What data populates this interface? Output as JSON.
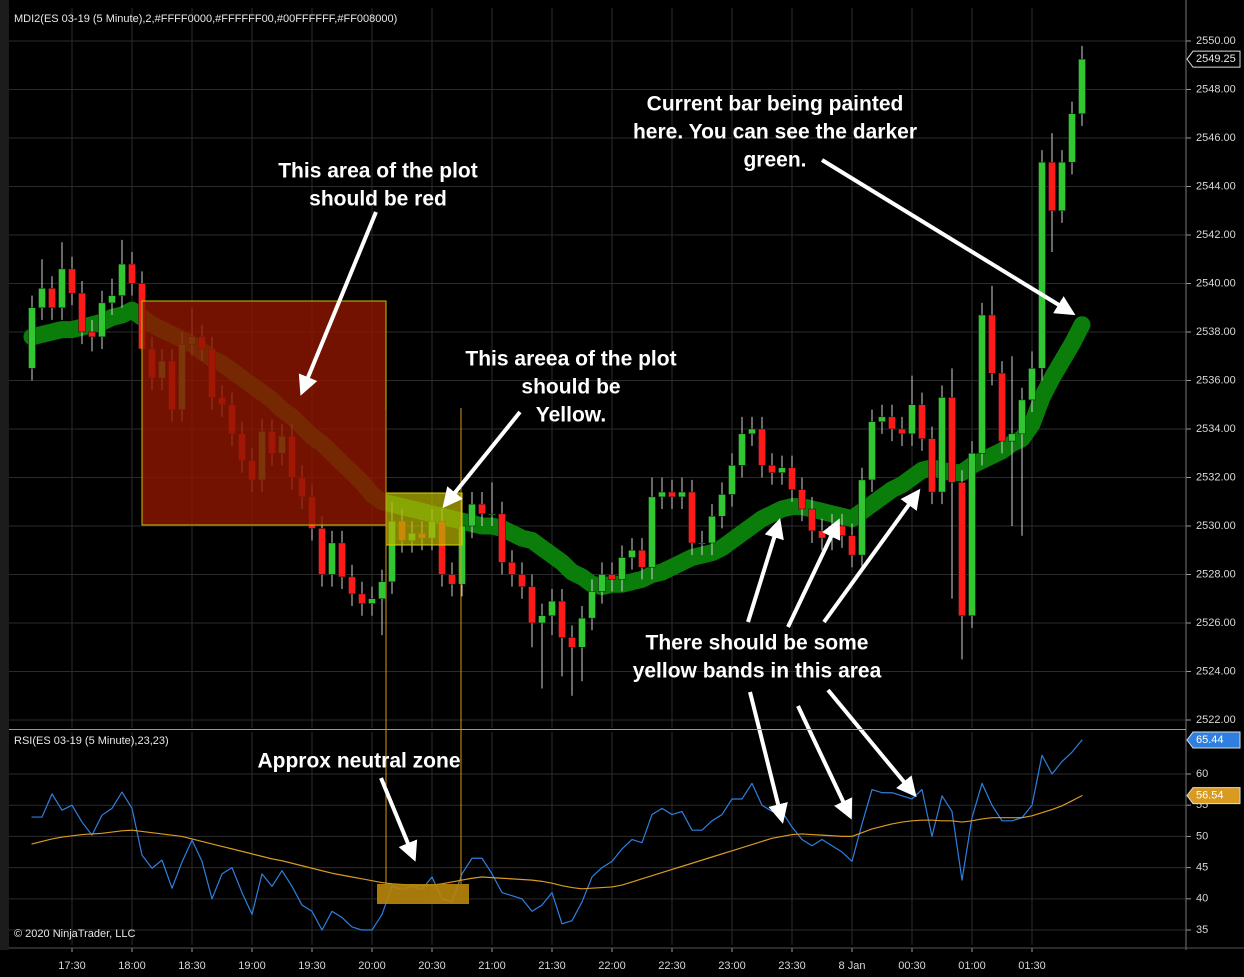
{
  "chart_data": [
    {
      "type": "candlestick",
      "title": "MDI2(ES 03-19 (5 Minute),2,#FFFF0000,#FFFFFF00,#00FFFFFF,#FF008000)",
      "categories": [
        null,
        null,
        null,
        null,
        "17:30",
        null,
        null,
        null,
        null,
        null,
        "18:00",
        null,
        null,
        null,
        null,
        null,
        "18:30",
        null,
        null,
        null,
        null,
        null,
        "19:00",
        null,
        null,
        null,
        null,
        null,
        "19:30",
        null,
        null,
        null,
        null,
        null,
        "20:00",
        null,
        null,
        null,
        null,
        null,
        "20:30",
        null,
        null,
        null,
        null,
        null,
        "21:00",
        null,
        null,
        null,
        null,
        null,
        "21:30",
        null,
        null,
        null,
        null,
        null,
        "22:00",
        null,
        null,
        null,
        null,
        null,
        "22:30",
        null,
        null,
        null,
        null,
        null,
        "23:00",
        null,
        null,
        null,
        null,
        null,
        "23:30",
        null,
        null,
        null,
        null,
        null,
        "8 Jan",
        null,
        null,
        null,
        null,
        null,
        "00:30",
        null,
        null,
        null,
        null,
        null,
        "01:00",
        null,
        null,
        null,
        null,
        null,
        "01:30",
        null,
        null,
        null,
        null,
        null
      ],
      "open": [
        2536.5,
        2539.0,
        2539.8,
        2539.0,
        2540.6,
        2539.6,
        2538.0,
        2537.8,
        2539.2,
        2539.5,
        2540.8,
        2540.0,
        2537.3,
        2536.1,
        2536.8,
        2534.8,
        2537.5,
        2537.8,
        2537.3,
        2535.3,
        2535.0,
        2533.8,
        2532.7,
        2531.9,
        2533.9,
        2533.0,
        2533.7,
        2532.0,
        2531.2,
        2529.9,
        2528.0,
        2529.3,
        2527.9,
        2527.2,
        2526.8,
        2527.0,
        2527.7,
        2530.2,
        2529.4,
        2529.7,
        2529.5,
        2530.2,
        2528.0,
        2527.6,
        2530.0,
        2530.9,
        2530.5,
        2530.5,
        2528.5,
        2528.0,
        2527.5,
        2526.0,
        2526.3,
        2526.9,
        2525.4,
        2525.0,
        2526.2,
        2527.3,
        2528.0,
        2527.8,
        2528.7,
        2529.0,
        2528.3,
        2531.2,
        2531.4,
        2531.2,
        2531.4,
        2529.3,
        2529.3,
        2530.4,
        2531.3,
        2532.5,
        2533.8,
        2534.0,
        2532.5,
        2532.2,
        2532.4,
        2531.5,
        2530.7,
        2529.8,
        2529.5,
        2530.0,
        2529.6,
        2528.8,
        2531.9,
        2534.3,
        2534.5,
        2534.0,
        2533.8,
        2535.0,
        2533.6,
        2531.4,
        2535.3,
        2531.8,
        2526.3,
        2533.0,
        2538.7,
        2536.3,
        2533.5,
        2533.8,
        2535.2,
        2536.5,
        2545.0,
        2543.0,
        2545.0,
        2547.0
      ],
      "high": [
        2539.5,
        2541.0,
        2540.3,
        2541.7,
        2541.1,
        2540.1,
        2538.5,
        2539.7,
        2540.2,
        2541.8,
        2541.3,
        2540.5,
        2537.8,
        2537.3,
        2537.3,
        2538.0,
        2539.0,
        2538.3,
        2537.8,
        2535.8,
        2535.5,
        2534.3,
        2533.2,
        2534.4,
        2534.4,
        2534.2,
        2534.2,
        2532.5,
        2531.7,
        2530.4,
        2529.8,
        2529.8,
        2528.4,
        2527.7,
        2527.5,
        2528.2,
        2531.0,
        2530.7,
        2530.2,
        2530.2,
        2530.7,
        2530.7,
        2528.5,
        2530.5,
        2531.4,
        2531.4,
        2531.8,
        2531.0,
        2529.0,
        2528.5,
        2528.0,
        2526.8,
        2527.4,
        2527.4,
        2525.9,
        2526.7,
        2527.8,
        2528.5,
        2528.5,
        2529.2,
        2529.5,
        2529.5,
        2532.0,
        2532.0,
        2531.9,
        2532.0,
        2531.9,
        2529.8,
        2530.9,
        2531.8,
        2533.0,
        2534.5,
        2534.5,
        2534.5,
        2533.0,
        2532.9,
        2532.9,
        2532.0,
        2531.2,
        2530.3,
        2530.5,
        2530.5,
        2530.1,
        2532.4,
        2534.8,
        2535.0,
        2535.0,
        2534.5,
        2536.2,
        2535.5,
        2534.1,
        2535.8,
        2536.5,
        2532.3,
        2533.5,
        2539.2,
        2539.9,
        2536.8,
        2537.0,
        2535.7,
        2537.2,
        2545.5,
        2546.2,
        2545.5,
        2547.5,
        2549.8
      ],
      "low": [
        2536.0,
        2538.5,
        2538.5,
        2538.5,
        2539.1,
        2537.5,
        2537.2,
        2537.3,
        2538.7,
        2539.0,
        2539.5,
        2536.8,
        2535.6,
        2535.6,
        2534.3,
        2534.3,
        2537.0,
        2536.8,
        2534.8,
        2534.5,
        2533.3,
        2532.2,
        2531.4,
        2531.4,
        2532.5,
        2532.5,
        2531.5,
        2530.7,
        2529.4,
        2527.5,
        2527.5,
        2527.4,
        2526.7,
        2526.3,
        2526.3,
        2525.5,
        2527.2,
        2528.9,
        2528.9,
        2529.0,
        2529.0,
        2527.5,
        2527.1,
        2527.1,
        2529.5,
        2530.0,
        2530.0,
        2528.0,
        2527.5,
        2527.0,
        2525.0,
        2523.3,
        2525.5,
        2523.8,
        2523.0,
        2523.6,
        2525.7,
        2526.8,
        2527.3,
        2527.3,
        2528.2,
        2527.8,
        2527.8,
        2530.7,
        2530.7,
        2530.7,
        2528.8,
        2528.8,
        2528.8,
        2529.9,
        2530.8,
        2532.0,
        2533.3,
        2532.0,
        2531.7,
        2531.7,
        2531.0,
        2530.2,
        2529.3,
        2529.0,
        2529.0,
        2529.1,
        2528.3,
        2528.3,
        2531.4,
        2533.8,
        2533.5,
        2533.3,
        2533.3,
        2533.1,
        2530.9,
        2530.9,
        2527.0,
        2524.5,
        2525.8,
        2532.5,
        2535.8,
        2533.0,
        2530.0,
        2529.6,
        2534.7,
        2536.0,
        2541.3,
        2542.5,
        2544.5,
        2546.5
      ],
      "close": [
        2539.0,
        2539.8,
        2539.0,
        2540.6,
        2539.6,
        2538.0,
        2537.8,
        2539.2,
        2539.5,
        2540.8,
        2540.0,
        2537.3,
        2536.1,
        2536.8,
        2534.8,
        2537.5,
        2537.8,
        2537.3,
        2535.3,
        2535.0,
        2533.8,
        2532.7,
        2531.9,
        2533.9,
        2533.0,
        2533.7,
        2532.0,
        2531.2,
        2529.9,
        2528.0,
        2529.3,
        2527.9,
        2527.2,
        2526.8,
        2527.0,
        2527.7,
        2530.2,
        2529.4,
        2529.7,
        2529.5,
        2530.2,
        2528.0,
        2527.6,
        2530.0,
        2530.9,
        2530.5,
        2530.5,
        2528.5,
        2528.0,
        2527.5,
        2526.0,
        2526.3,
        2526.9,
        2525.4,
        2525.0,
        2526.2,
        2527.3,
        2528.0,
        2527.8,
        2528.7,
        2529.0,
        2528.3,
        2531.2,
        2531.4,
        2531.2,
        2531.4,
        2529.3,
        2529.3,
        2530.4,
        2531.3,
        2532.5,
        2533.8,
        2534.0,
        2532.5,
        2532.2,
        2532.4,
        2531.5,
        2530.7,
        2529.8,
        2529.5,
        2530.0,
        2529.6,
        2528.8,
        2531.9,
        2534.3,
        2534.5,
        2534.0,
        2533.8,
        2535.0,
        2533.6,
        2531.4,
        2535.3,
        2531.8,
        2526.3,
        2533.0,
        2538.7,
        2536.3,
        2533.5,
        2533.8,
        2535.2,
        2536.5,
        2545.0,
        2543.0,
        2545.0,
        2547.0,
        2549.25
      ],
      "up_color": "#33c633",
      "down_color": "#ff1a1a",
      "wick_color": "#d0d0d0",
      "series": [
        {
          "color": "#0b7d0b",
          "values": [
            2537.8,
            2537.9,
            2538.0,
            2538.1,
            2538.1,
            2538.2,
            2538.3,
            2538.4,
            2538.6,
            2538.7,
            2538.9,
            2538.6,
            2538.3,
            2538.1,
            2537.9,
            2537.7,
            2537.5,
            2537.2,
            2536.9,
            2536.7,
            2536.4,
            2536.1,
            2535.8,
            2535.5,
            2535.2,
            2534.8,
            2534.5,
            2534.1,
            2533.7,
            2533.4,
            2533.0,
            2532.6,
            2532.2,
            2531.8,
            2531.3,
            2531.0,
            2530.9,
            2530.8,
            2530.7,
            2530.6,
            2530.5,
            2530.4,
            2530.3,
            2530.2,
            2530.1,
            2530.0,
            2530.0,
            2529.9,
            2529.7,
            2529.5,
            2529.4,
            2529.1,
            2528.8,
            2528.5,
            2528.1,
            2527.9,
            2527.6,
            2527.5,
            2527.6,
            2527.6,
            2527.7,
            2527.8,
            2528.0,
            2528.1,
            2528.3,
            2528.5,
            2528.7,
            2528.8,
            2528.9,
            2529.1,
            2529.4,
            2529.7,
            2530.0,
            2530.3,
            2530.5,
            2530.7,
            2530.8,
            2530.8,
            2530.7,
            2530.6,
            2530.5,
            2530.4,
            2530.3,
            2530.6,
            2530.9,
            2531.2,
            2531.5,
            2531.7,
            2532.0,
            2532.3,
            2532.4,
            2532.3,
            2532.2,
            2532.2,
            2532.5,
            2532.7,
            2532.9,
            2533.1,
            2533.4,
            2533.6,
            2534.2,
            2535.3,
            2536.1,
            2536.8,
            2537.5,
            2538.3
          ]
        }
      ],
      "ylim": [
        2521.67,
        2551.36
      ],
      "yticks": [
        {
          "value": 2522,
          "label": "2522.00"
        },
        {
          "value": 2524,
          "label": "2524.00"
        },
        {
          "value": 2526,
          "label": "2526.00"
        },
        {
          "value": 2528,
          "label": "2528.00"
        },
        {
          "value": 2530,
          "label": "2530.00"
        },
        {
          "value": 2532,
          "label": "2532.00"
        },
        {
          "value": 2534,
          "label": "2534.00"
        },
        {
          "value": 2536,
          "label": "2536.00"
        },
        {
          "value": 2538,
          "label": "2538.00"
        },
        {
          "value": 2540,
          "label": "2540.00"
        },
        {
          "value": 2542,
          "label": "2542.00"
        },
        {
          "value": 2544,
          "label": "2544.00"
        },
        {
          "value": 2546,
          "label": "2546.00"
        },
        {
          "value": 2548,
          "label": "2548.00"
        },
        {
          "value": 2550,
          "label": "2550.00"
        }
      ],
      "grid": true,
      "last_value_marker": true
    },
    {
      "type": "line",
      "title": "RSI(ES 03-19 (5 Minute),23,23)",
      "series": [
        {
          "color": "#2e7fe0",
          "values": [
            53.1,
            53.1,
            56.8,
            54.2,
            55,
            52.3,
            50.2,
            53.4,
            54.5,
            57.1,
            54.5,
            47,
            44.9,
            46.2,
            41.7,
            45.9,
            49.4,
            46,
            40,
            44,
            45,
            41,
            37.5,
            44,
            42,
            44.5,
            42,
            39,
            38,
            35,
            38,
            37,
            35.5,
            35,
            35,
            37.5,
            42,
            41.5,
            42,
            41.5,
            43.5,
            40,
            39.5,
            44,
            46.5,
            46.5,
            44,
            41,
            40.5,
            40,
            38,
            39,
            41,
            36,
            36.5,
            39.5,
            43.5,
            45,
            46,
            48,
            49.5,
            49,
            53.5,
            54.5,
            53.5,
            54,
            51,
            51,
            52.5,
            53.5,
            56,
            56,
            58.5,
            55,
            54,
            54,
            51.5,
            49.5,
            48.5,
            49.5,
            48.5,
            47.5,
            46,
            52,
            57.5,
            57,
            57,
            56.5,
            56,
            57.5,
            50,
            56.5,
            54,
            43,
            53,
            58.5,
            55,
            52.5,
            52.5,
            53,
            55,
            63,
            60,
            62,
            63.5,
            65.44
          ]
        },
        {
          "color": "#d89a20",
          "values": [
            48.8,
            49.2,
            49.6,
            49.9,
            50.1,
            50.3,
            50.4,
            50.5,
            50.7,
            50.9,
            51,
            50.8,
            50.6,
            50.4,
            50.2,
            50,
            49.6,
            49.2,
            48.8,
            48.4,
            48,
            47.6,
            47.2,
            46.8,
            46.4,
            46.1,
            45.7,
            45.3,
            44.9,
            44.5,
            44.1,
            43.8,
            43.5,
            43.2,
            42.9,
            42.6,
            42.4,
            42.3,
            42.2,
            42.1,
            42.2,
            42.4,
            42.7,
            43,
            43.3,
            43.5,
            43.4,
            43.3,
            43.2,
            43.1,
            43,
            42.8,
            42.5,
            42.1,
            41.8,
            41.6,
            41.7,
            41.8,
            41.9,
            42.2,
            42.7,
            43.2,
            43.7,
            44.2,
            44.7,
            45.2,
            45.7,
            46.2,
            46.7,
            47.2,
            47.7,
            48.2,
            48.7,
            49.2,
            49.7,
            50,
            50.3,
            50.4,
            50.3,
            50.2,
            50.1,
            50,
            50,
            50.6,
            51.2,
            51.6,
            52,
            52.3,
            52.5,
            52.6,
            52.6,
            52.5,
            52.5,
            52.3,
            52.5,
            52.8,
            53,
            53,
            53,
            53,
            53.3,
            53.8,
            54.3,
            54.9,
            55.7,
            56.54
          ]
        }
      ],
      "ylim": [
        32.6,
        66.73
      ],
      "yticks": [
        35,
        40,
        45,
        50,
        55,
        60
      ],
      "grid": true,
      "last_value_marker": true
    }
  ],
  "footer": "© 2020 NinjaTrader, LLC",
  "annotations": [
    {
      "lines": [
        "Current bar being painted",
        "here.  You can see the darker",
        "green."
      ]
    },
    {
      "lines": [
        "This area of the plot",
        "should be red"
      ]
    },
    {
      "lines": [
        "This areea of the plot",
        "should be",
        "Yellow."
      ]
    },
    {
      "lines": [
        "There should be some",
        "yellow bands in this area"
      ]
    },
    {
      "lines": [
        "Approx neutral zone"
      ]
    }
  ]
}
